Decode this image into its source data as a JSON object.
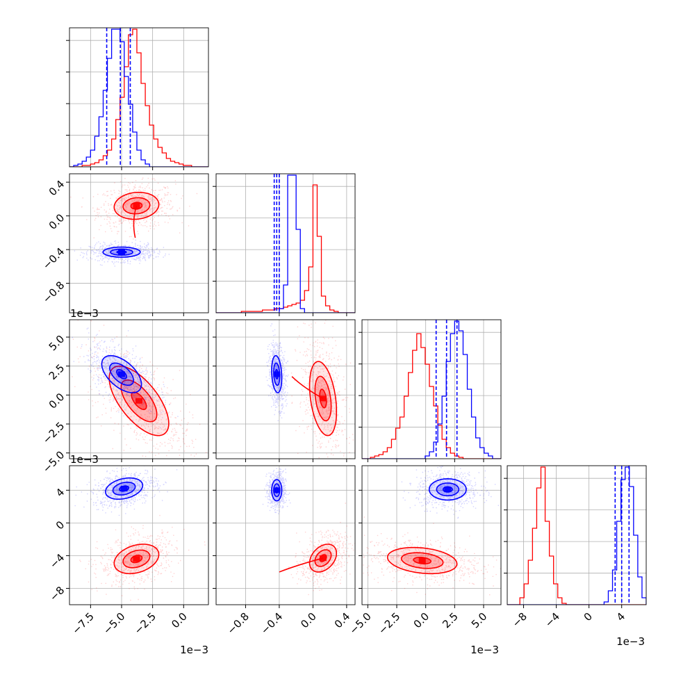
{
  "chart_data": {
    "type": "corner",
    "grid": true,
    "parameters": 4,
    "colors": {
      "red": "#ff0000",
      "blue": "#0000ff"
    },
    "series": [
      {
        "color_key": "red"
      },
      {
        "color_key": "blue"
      }
    ],
    "offset_labels": [
      {
        "id": "p1-y",
        "text": "1e−3"
      },
      {
        "id": "p2-y",
        "text": "1e−3"
      },
      {
        "id": "p0-x",
        "text": "1e−3"
      },
      {
        "id": "p2-x",
        "text": "1e−3"
      },
      {
        "id": "p3-x",
        "text": "1e−3"
      }
    ],
    "axes": [
      {
        "id": "p0",
        "range": [
          -9.2,
          2.0
        ],
        "ticks": [
          -7.5,
          -5.0,
          -2.5,
          0.0
        ],
        "tick_labels": [
          "−7.5",
          "−5.0",
          "−2.5",
          "0.0"
        ]
      },
      {
        "id": "p1",
        "range": [
          -1.15,
          0.5
        ],
        "ticks": [
          -0.8,
          -0.4,
          0.0,
          0.4
        ],
        "tick_labels": [
          "−0.8",
          "−0.4",
          "0.0",
          "0.4"
        ]
      },
      {
        "id": "p2",
        "range": [
          -5.5,
          6.5
        ],
        "ticks": [
          -5.0,
          -2.5,
          0.0,
          2.5,
          5.0
        ],
        "tick_labels": [
          "−5.0",
          "−2.5",
          "0.0",
          "2.5",
          "5.0"
        ]
      },
      {
        "id": "p3",
        "range": [
          -10.0,
          7.0
        ],
        "ticks": [
          -8,
          -4,
          0,
          4
        ],
        "tick_labels": [
          "−8",
          "−4",
          "0",
          "4"
        ]
      }
    ],
    "marginals": [
      {
        "param": 0,
        "quantiles_blue": [
          -6.2,
          -5.1,
          -4.3
        ],
        "hist_red": {
          "edges": [
            -9.2,
            2.0
          ],
          "counts": [
            0,
            0,
            0,
            1,
            1,
            2,
            3,
            5,
            8,
            12,
            20,
            34,
            50,
            72,
            95,
            99,
            82,
            60,
            44,
            30,
            20,
            14,
            10,
            6,
            4,
            3,
            2,
            1,
            1,
            0,
            0,
            0,
            0
          ]
        },
        "hist_blue": {
          "edges": [
            -9.2,
            2.0
          ],
          "counts": [
            0,
            1,
            2,
            4,
            7,
            12,
            22,
            36,
            55,
            78,
            99,
            99,
            90,
            65,
            45,
            25,
            12,
            5,
            2,
            0,
            0,
            0,
            0,
            0,
            0,
            0,
            0,
            0,
            0,
            0,
            0,
            0,
            0
          ]
        }
      },
      {
        "param": 1,
        "quantiles_blue": [
          -0.46,
          -0.43,
          -0.4
        ],
        "hist_red": {
          "edges": [
            -1.15,
            0.5
          ],
          "counts": [
            0,
            0,
            0,
            0,
            0,
            0,
            1,
            1,
            1,
            1,
            1,
            2,
            2,
            2,
            3,
            3,
            4,
            5,
            6,
            7,
            9,
            16,
            33,
            92,
            55,
            12,
            5,
            2,
            1,
            0,
            0,
            0,
            0
          ]
        },
        "hist_blue": {
          "edges": [
            -1.15,
            0.5
          ],
          "counts": [
            0,
            0,
            0,
            0,
            0,
            0,
            0,
            0,
            0,
            0,
            0,
            0,
            0,
            0,
            0,
            3,
            20,
            99,
            99,
            60,
            3,
            0,
            0,
            0,
            0,
            0,
            0,
            0,
            0,
            0,
            0,
            0,
            0
          ]
        }
      },
      {
        "param": 2,
        "quantiles_blue": [
          0.9,
          1.8,
          2.7
        ],
        "hist_red": {
          "edges": [
            -5.5,
            6.5
          ],
          "counts": [
            0,
            0,
            1,
            2,
            3,
            5,
            8,
            14,
            22,
            30,
            45,
            62,
            78,
            90,
            80,
            68,
            52,
            38,
            24,
            14,
            8,
            4,
            2,
            1,
            0,
            0,
            0,
            0,
            0,
            0,
            0,
            0,
            0
          ]
        },
        "hist_blue": {
          "edges": [
            -5.5,
            6.5
          ],
          "counts": [
            0,
            0,
            0,
            0,
            0,
            0,
            0,
            0,
            0,
            0,
            0,
            0,
            0,
            0,
            0,
            2,
            5,
            12,
            25,
            45,
            70,
            90,
            99,
            92,
            75,
            50,
            30,
            15,
            8,
            4,
            2,
            0,
            0
          ]
        }
      },
      {
        "param": 3,
        "quantiles_blue": [
          3.2,
          4.0,
          4.9
        ],
        "hist_red": {
          "edges": [
            -10.0,
            7.0
          ],
          "counts": [
            0,
            0,
            0,
            5,
            15,
            32,
            55,
            84,
            99,
            60,
            35,
            15,
            5,
            1,
            0,
            0,
            0,
            0,
            0,
            0,
            0,
            0,
            0,
            0,
            0,
            0,
            0,
            0,
            0,
            0,
            0,
            0,
            0
          ]
        },
        "hist_blue": {
          "edges": [
            -10.0,
            7.0
          ],
          "counts": [
            0,
            0,
            0,
            0,
            0,
            0,
            0,
            0,
            0,
            0,
            0,
            0,
            0,
            0,
            0,
            0,
            0,
            0,
            0,
            0,
            0,
            0,
            0,
            2,
            10,
            25,
            60,
            90,
            99,
            85,
            50,
            20,
            5
          ]
        }
      }
    ],
    "pairs": [
      {
        "x": 0,
        "y": 1,
        "red": {
          "mean": [
            -3.8,
            0.12
          ],
          "sd": [
            0.9,
            0.08
          ],
          "corr": 0.1,
          "tail": [
            -3.9,
            -0.26
          ]
        },
        "blue": {
          "mean": [
            -5.0,
            -0.43
          ],
          "sd": [
            0.75,
            0.03
          ],
          "corr": 0.0
        }
      },
      {
        "x": 0,
        "y": 2,
        "red": {
          "mean": [
            -3.6,
            -0.5
          ],
          "sd": [
            1.2,
            1.5
          ],
          "corr": -0.65
        },
        "blue": {
          "mean": [
            -5.0,
            1.8
          ],
          "sd": [
            0.8,
            0.8
          ],
          "corr": -0.55
        }
      },
      {
        "x": 1,
        "y": 2,
        "red": {
          "mean": [
            0.12,
            -0.3
          ],
          "sd": [
            0.08,
            1.6
          ],
          "corr": -0.35,
          "tail": [
            -0.25,
            1.6
          ]
        },
        "blue": {
          "mean": [
            -0.43,
            1.8
          ],
          "sd": [
            0.03,
            0.8
          ],
          "corr": -0.2
        }
      },
      {
        "x": 0,
        "y": 3,
        "red": {
          "mean": [
            -3.8,
            -4.4
          ],
          "sd": [
            0.9,
            0.9
          ],
          "corr": 0.3
        },
        "blue": {
          "mean": [
            -4.8,
            4.2
          ],
          "sd": [
            0.75,
            0.65
          ],
          "corr": 0.3
        }
      },
      {
        "x": 1,
        "y": 3,
        "red": {
          "mean": [
            0.12,
            -4.3
          ],
          "sd": [
            0.08,
            0.85
          ],
          "corr": 0.35,
          "tail": [
            -0.4,
            -6.0
          ]
        },
        "blue": {
          "mean": [
            -0.43,
            4.0
          ],
          "sd": [
            0.03,
            0.65
          ],
          "corr": 0.0
        }
      },
      {
        "x": 2,
        "y": 3,
        "red": {
          "mean": [
            -0.3,
            -4.6
          ],
          "sd": [
            1.5,
            0.8
          ],
          "corr": -0.25
        },
        "blue": {
          "mean": [
            1.9,
            4.1
          ],
          "sd": [
            0.8,
            0.65
          ],
          "corr": 0.0
        }
      }
    ]
  }
}
